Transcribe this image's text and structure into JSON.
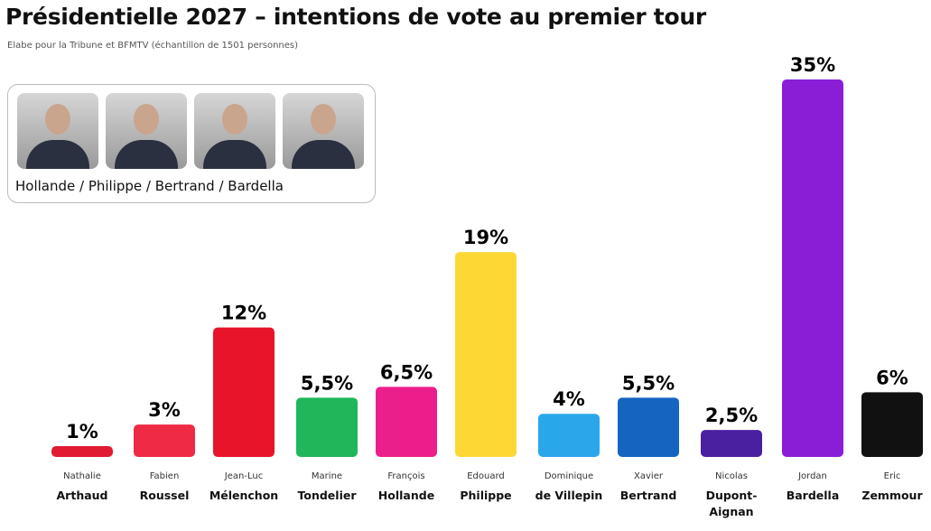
{
  "chart_data": {
    "type": "bar",
    "title": "Présidentielle 2027 – intentions de vote au premier tour",
    "subtitle": "Elabe pour la Tribune et  BFMTV (échantillon de 1501 personnes)",
    "categories": [
      {
        "first": "Nathalie",
        "last": "Arthaud"
      },
      {
        "first": "Fabien",
        "last": "Roussel"
      },
      {
        "first": "Jean-Luc",
        "last": "Mélenchon"
      },
      {
        "first": "Marine",
        "last": "Tondelier"
      },
      {
        "first": "François",
        "last": "Hollande"
      },
      {
        "first": "Edouard",
        "last": "Philippe"
      },
      {
        "first": "Dominique",
        "last": "de Villepin"
      },
      {
        "first": "Xavier",
        "last": "Bertrand"
      },
      {
        "first": "Nicolas",
        "last": "Dupont-Aignan"
      },
      {
        "first": "Jordan",
        "last": "Bardella"
      },
      {
        "first": "Eric",
        "last": "Zemmour"
      }
    ],
    "values": [
      1,
      3,
      12,
      5.5,
      6.5,
      19,
      4,
      5.5,
      2.5,
      35,
      6
    ],
    "labels": [
      "1%",
      "3%",
      "12%",
      "5,5%",
      "6,5%",
      "19%",
      "4%",
      "5,5%",
      "2,5%",
      "35%",
      "6%"
    ],
    "colors": [
      "#e01b32",
      "#ee2a45",
      "#e8142a",
      "#1fb75a",
      "#ec1e8c",
      "#fdd835",
      "#2aa7ea",
      "#1565c0",
      "#4a1fa0",
      "#8a1ed6",
      "#111111"
    ],
    "ylim": [
      0,
      35
    ],
    "grid": false
  },
  "hypothesis": {
    "caption": "Hollande / Philippe / Bertrand / Bardella",
    "photos": [
      "Hollande",
      "Philippe",
      "Bertrand",
      "Bardella"
    ]
  }
}
